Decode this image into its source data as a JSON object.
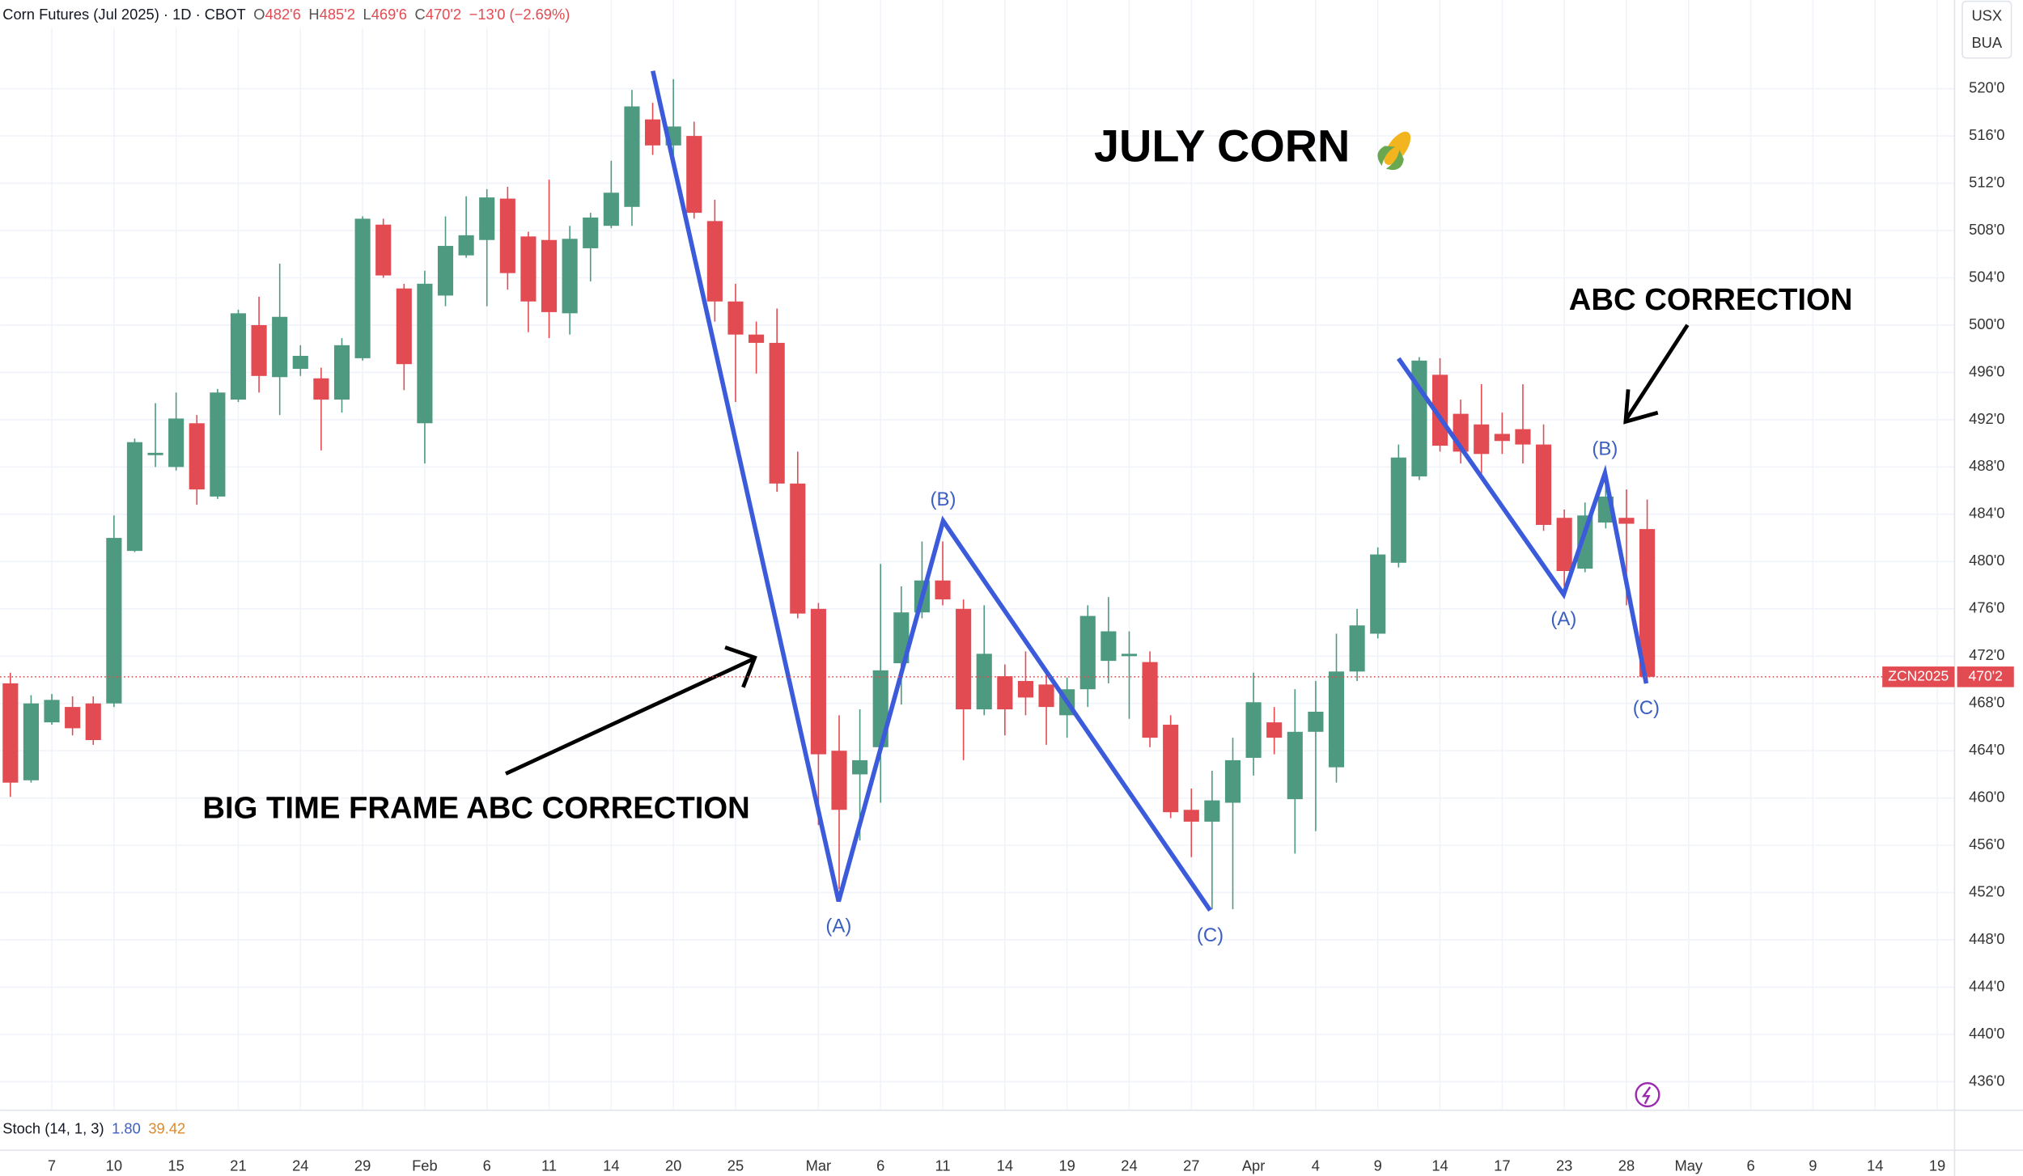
{
  "chart_data": {
    "type": "candlestick",
    "title": "Corn Futures (Jul 2025) · 1D · CBOT",
    "ohlc_legend": [
      {
        "key": "O",
        "value": "482'6"
      },
      {
        "key": "H",
        "value": "485'2"
      },
      {
        "key": "L",
        "value": "469'6"
      },
      {
        "key": "C",
        "value": "470'2"
      }
    ],
    "change": "−13'0 (−2.69%)",
    "units": [
      "USX",
      "BUA"
    ],
    "headline": "JULY CORN",
    "annotations": [
      "BIG TIME FRAME ABC CORRECTION",
      "ABC CORRECTION"
    ],
    "wave_labels": [
      "(A)",
      "(B)",
      "(C)",
      "(A)",
      "(B)",
      "(C)"
    ],
    "symbol": "ZCN2025",
    "last_price": {
      "value": 470.25,
      "label": "470'2"
    },
    "up_color": "#4e9a80",
    "down_color": "#e34b52",
    "grid": true,
    "categories": [
      null,
      null,
      "7",
      null,
      null,
      "10",
      null,
      null,
      "15",
      null,
      null,
      "21",
      null,
      null,
      "24",
      null,
      null,
      "29",
      null,
      null,
      "Feb",
      null,
      null,
      "6",
      null,
      null,
      "11",
      null,
      null,
      "14",
      null,
      null,
      "20",
      null,
      null,
      "25",
      null,
      null,
      null,
      "Mar",
      null,
      null,
      "6",
      null,
      null,
      "11",
      null,
      null,
      "14",
      null,
      null,
      "19",
      null,
      null,
      "24",
      null,
      null,
      "27",
      null,
      null,
      "Apr",
      null,
      null,
      "4",
      null,
      null,
      "9",
      null,
      null,
      "14",
      null,
      null,
      "17",
      null,
      null,
      "23",
      null,
      null,
      "28",
      null,
      null,
      "May",
      null,
      null,
      "6",
      null,
      null,
      "9",
      null,
      null,
      "14",
      null,
      null,
      "19"
    ],
    "open": [
      469.7,
      461.5,
      466.4,
      467.7,
      468,
      468,
      480.9,
      489,
      488,
      491.7,
      485.5,
      493.7,
      500,
      495.6,
      496.3,
      495.5,
      493.7,
      497.2,
      508.5,
      503.1,
      491.7,
      502.5,
      505.9,
      507.2,
      510.7,
      507.5,
      507.2,
      501,
      506.5,
      508.4,
      510,
      517.4,
      515.2,
      516,
      508.8,
      502,
      499.2,
      498.5,
      486.6,
      476,
      464,
      462,
      464.3,
      471.4,
      475.7,
      478.4,
      476,
      467.5,
      470.3,
      469.9,
      469.6,
      467,
      469.2,
      471.6,
      472,
      471.5,
      466.2,
      459,
      458,
      459.6,
      463.4,
      466.4,
      459.9,
      465.6,
      462.6,
      470.7,
      473.9,
      479.9,
      487.2,
      495.8,
      492.5,
      491.6,
      490.8,
      491.2,
      489.9,
      483.7,
      479.4,
      483.3,
      483.7,
      482.75,
      null,
      null,
      null,
      null,
      null,
      null,
      null,
      null,
      null,
      null,
      null,
      null,
      null,
      null
    ],
    "high": [
      470.6,
      468.7,
      468.8,
      468.6,
      468.6,
      483.9,
      490.4,
      493.4,
      494.3,
      492.4,
      494.6,
      501.3,
      502.4,
      505.2,
      498.3,
      496.4,
      498.9,
      509.2,
      509,
      503.5,
      504.6,
      509.2,
      510.9,
      511.5,
      511.7,
      507.9,
      512.3,
      508.4,
      509.5,
      513.9,
      519.9,
      518.8,
      520.8,
      517.2,
      510.6,
      503.5,
      500.3,
      501.4,
      489.3,
      476.5,
      467,
      467.5,
      479.8,
      477.9,
      481.7,
      481.7,
      476.8,
      476.3,
      471.3,
      472.4,
      470.8,
      470.2,
      476.3,
      477,
      474.1,
      472.4,
      467,
      460.8,
      462.3,
      465.1,
      470.6,
      467.7,
      469.2,
      469.9,
      473.9,
      476,
      481.2,
      489.9,
      497.3,
      497.2,
      493.7,
      495,
      492.6,
      495,
      491.6,
      484.4,
      485,
      487.2,
      486.1,
      485.25,
      null,
      null,
      null,
      null,
      null,
      null,
      null,
      null,
      null,
      null,
      null,
      null,
      null,
      null
    ],
    "low": [
      460.1,
      461.3,
      466.2,
      465.3,
      464.5,
      467.7,
      480.8,
      488,
      487.7,
      484.8,
      485.3,
      493.5,
      494.3,
      492.4,
      495.7,
      489.4,
      492.6,
      497,
      504,
      494.5,
      488.3,
      501.6,
      505.7,
      501.6,
      503,
      499.4,
      498.9,
      499.2,
      503.7,
      508.2,
      508.4,
      514.4,
      514.4,
      509,
      500.3,
      493.5,
      495.9,
      485.9,
      475.2,
      457.7,
      452.3,
      456.4,
      459.6,
      467.9,
      475.2,
      476.3,
      463.2,
      467,
      465.3,
      467,
      464.5,
      465.1,
      467.7,
      469.7,
      466.7,
      464.3,
      458.3,
      455,
      450.6,
      450.6,
      461.9,
      463.7,
      455.3,
      457.2,
      461.3,
      469.9,
      473.5,
      479.5,
      486.9,
      489.3,
      488.3,
      487.4,
      489.1,
      488.3,
      482.6,
      477.9,
      479.1,
      482.8,
      476.3,
      469.75,
      null,
      null,
      null,
      null,
      null,
      null,
      null,
      null,
      null,
      null,
      null,
      null,
      null,
      null
    ],
    "close": [
      461.3,
      468,
      468.3,
      465.9,
      464.9,
      482,
      490.1,
      489.2,
      492.1,
      486.1,
      494.3,
      501,
      495.7,
      500.7,
      497.4,
      493.7,
      498.3,
      509,
      504.2,
      496.7,
      503.5,
      506.7,
      507.6,
      510.8,
      504.4,
      502,
      501.1,
      507.3,
      509.1,
      511.2,
      518.5,
      515.2,
      516.8,
      509.5,
      502,
      499.2,
      498.5,
      486.6,
      475.6,
      463.7,
      459,
      463.2,
      470.8,
      475.7,
      478.4,
      476.8,
      467.5,
      472.2,
      467.5,
      468.5,
      467.7,
      469.2,
      475.4,
      474.1,
      472.2,
      465.1,
      458.8,
      458,
      459.8,
      463.2,
      468.1,
      465.1,
      465.6,
      467.3,
      470.7,
      474.6,
      480.6,
      488.8,
      497,
      489.8,
      489.3,
      489.1,
      490.2,
      489.9,
      483.1,
      479.2,
      483.9,
      485.5,
      483.2,
      470.25,
      null,
      null,
      null,
      null,
      null,
      null,
      null,
      null,
      null,
      null,
      null,
      null,
      null,
      null
    ],
    "ylim": [
      433.7,
      527.5
    ],
    "yticks": [
      {
        "value": 436,
        "label": "436'0"
      },
      {
        "value": 440,
        "label": "440'0"
      },
      {
        "value": 444,
        "label": "444'0"
      },
      {
        "value": 448,
        "label": "448'0"
      },
      {
        "value": 452,
        "label": "452'0"
      },
      {
        "value": 456,
        "label": "456'0"
      },
      {
        "value": 460,
        "label": "460'0"
      },
      {
        "value": 464,
        "label": "464'0"
      },
      {
        "value": 468,
        "label": "468'0"
      },
      {
        "value": 472,
        "label": "472'0"
      },
      {
        "value": 476,
        "label": "476'0"
      },
      {
        "value": 480,
        "label": "480'0"
      },
      {
        "value": 484,
        "label": "484'0"
      },
      {
        "value": 488,
        "label": "488'0"
      },
      {
        "value": 492,
        "label": "492'0"
      },
      {
        "value": 496,
        "label": "496'0"
      },
      {
        "value": 500,
        "label": "500'0"
      },
      {
        "value": 504,
        "label": "504'0"
      },
      {
        "value": 508,
        "label": "508'0"
      },
      {
        "value": 512,
        "label": "512'0"
      },
      {
        "value": 516,
        "label": "516'0"
      },
      {
        "value": 520,
        "label": "520'0"
      }
    ],
    "indicator": {
      "name": "Stoch (14, 1, 3)",
      "values": [
        1.8,
        39.42
      ],
      "value_labels": [
        "1.80",
        "39.42"
      ],
      "colors": [
        "#3d5fc4",
        "#e0892a"
      ]
    }
  }
}
